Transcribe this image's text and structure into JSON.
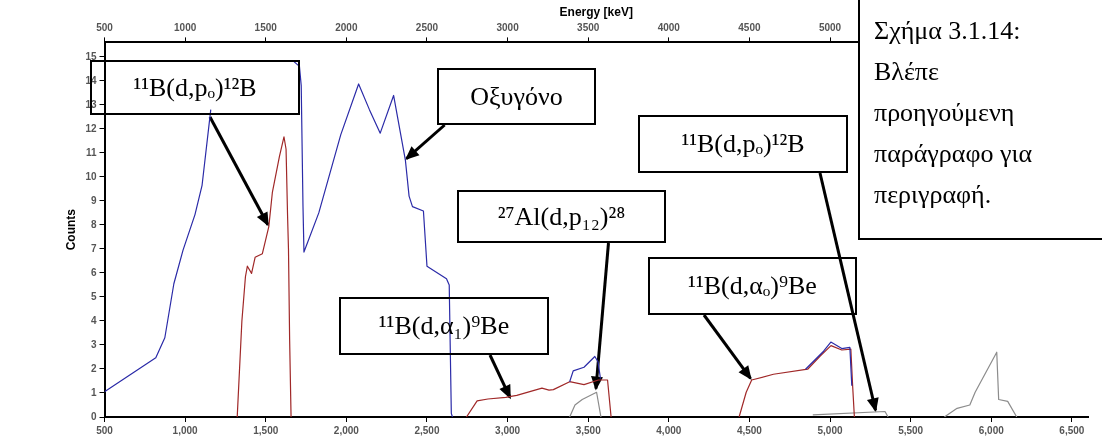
{
  "chart_data": {
    "type": "line",
    "x2label": "Energy [keV]",
    "ylabel": "Counts",
    "xlim": [
      500,
      6600
    ],
    "x2lim": [
      500,
      6600
    ],
    "ylim": [
      0,
      15.6
    ],
    "xticks": [
      {
        "value": 500,
        "label": "500"
      },
      {
        "value": 1000,
        "label": "1,000"
      },
      {
        "value": 1500,
        "label": "1,500"
      },
      {
        "value": 2000,
        "label": "2,000"
      },
      {
        "value": 2500,
        "label": "2,500"
      },
      {
        "value": 3000,
        "label": "3,000"
      },
      {
        "value": 3500,
        "label": "3,500"
      },
      {
        "value": 4000,
        "label": "4,000"
      },
      {
        "value": 4500,
        "label": "4,500"
      },
      {
        "value": 5000,
        "label": "5,000"
      },
      {
        "value": 5500,
        "label": "5,500"
      },
      {
        "value": 6000,
        "label": "6,000"
      },
      {
        "value": 6500,
        "label": "6,500"
      }
    ],
    "x2ticks": [
      500,
      1000,
      1500,
      2000,
      2500,
      3000,
      3500,
      4000,
      4500,
      5000
    ],
    "yticks": [
      0,
      1,
      2,
      3,
      4,
      5,
      6,
      7,
      8,
      9,
      10,
      11,
      12,
      13,
      14,
      15
    ],
    "grid": false,
    "legend": false,
    "marker": "none",
    "line_style": "solid",
    "series": [
      {
        "color": "#2b2ba8",
        "x": [
          500,
          818,
          874,
          930,
          987,
          1061,
          1105,
          1159,
          1196,
          1657,
          1675,
          1709,
          1720,
          1731,
          1737,
          1829,
          1965,
          2076,
          2143,
          2210,
          2293,
          2366,
          2389,
          2410,
          2478,
          2500,
          2621,
          2638,
          2651,
          2658,
          3000,
          3385,
          3407,
          3474,
          3541,
          3561,
          3576,
          4000,
          4848,
          4960,
          5005,
          5073,
          5123,
          5135
        ],
        "values": [
          1.05,
          2.47,
          3.3,
          5.55,
          6.95,
          8.43,
          9.65,
          12.8,
          null,
          null,
          14.8,
          14.6,
          13.8,
          8.77,
          6.87,
          8.5,
          11.75,
          13.87,
          12.8,
          11.82,
          13.39,
          10.7,
          9.2,
          8.76,
          8.58,
          6.28,
          5.76,
          5.5,
          0.15,
          0,
          null,
          1.47,
          1.92,
          2.07,
          2.52,
          2.3,
          1.6,
          null,
          1.99,
          2.74,
          3.12,
          2.85,
          2.9,
          1.3
        ]
      },
      {
        "color": "#a02828",
        "x": [
          1323,
          1352,
          1374,
          1386,
          1412,
          1434,
          1479,
          1519,
          1541,
          1585,
          1613,
          1626,
          1635,
          1641,
          1648,
          1657,
          2000,
          2745,
          2811,
          2878,
          2989,
          3057,
          3213,
          3257,
          3284,
          3385,
          3474,
          3563,
          3620,
          3642,
          4000,
          4436,
          4480,
          4514,
          4649,
          4861,
          4939,
          5006,
          5073,
          5129,
          5140,
          5151
        ],
        "values": [
          0,
          4.0,
          5.84,
          6.28,
          5.98,
          6.65,
          6.8,
          7.93,
          9.35,
          10.85,
          11.67,
          11.15,
          8.46,
          7.0,
          3.28,
          0,
          null,
          0,
          0.67,
          0.75,
          0.82,
          0.9,
          1.2,
          1.12,
          1.14,
          1.47,
          1.35,
          1.54,
          1.54,
          0,
          null,
          0,
          1.03,
          1.54,
          1.78,
          1.99,
          2.54,
          2.97,
          2.79,
          2.83,
          1.32,
          0
        ]
      },
      {
        "color": "#8c8c8c",
        "x": [
          3385,
          3418,
          3463,
          3552,
          3579,
          4000,
          4893,
          5341,
          5360,
          5500,
          5709,
          5788,
          5867,
          5900,
          6034,
          6046,
          6102,
          6158
        ],
        "values": [
          0,
          0.5,
          0.73,
          1.03,
          0,
          null,
          0.09,
          0.23,
          0,
          null,
          0,
          0.36,
          0.5,
          1.03,
          2.7,
          0.73,
          0.65,
          0
        ]
      }
    ],
    "annotations": [
      {
        "text": "¹¹B(d,pₒ)¹²B",
        "x": 1519,
        "y": 7.93
      },
      {
        "text": "Οξυγόνο",
        "x": 2366,
        "y": 10.7
      },
      {
        "text": "²⁷Al(d,p₁₂)²⁸",
        "x": 3544,
        "y": 1.1
      },
      {
        "text": "¹¹B(d,α₁)⁹Be",
        "x": 3020,
        "y": 0.74
      },
      {
        "text": "¹¹B(d,αₒ)⁹Be",
        "x": 4514,
        "y": 1.54
      },
      {
        "text": "¹¹B(d,pₒ)¹²B",
        "x": 5285,
        "y": 0.2
      },
      "Σχήμα 3.1.14: Βλέπε προηγούμενη παράγραφο για περιγραφή."
    ]
  }
}
